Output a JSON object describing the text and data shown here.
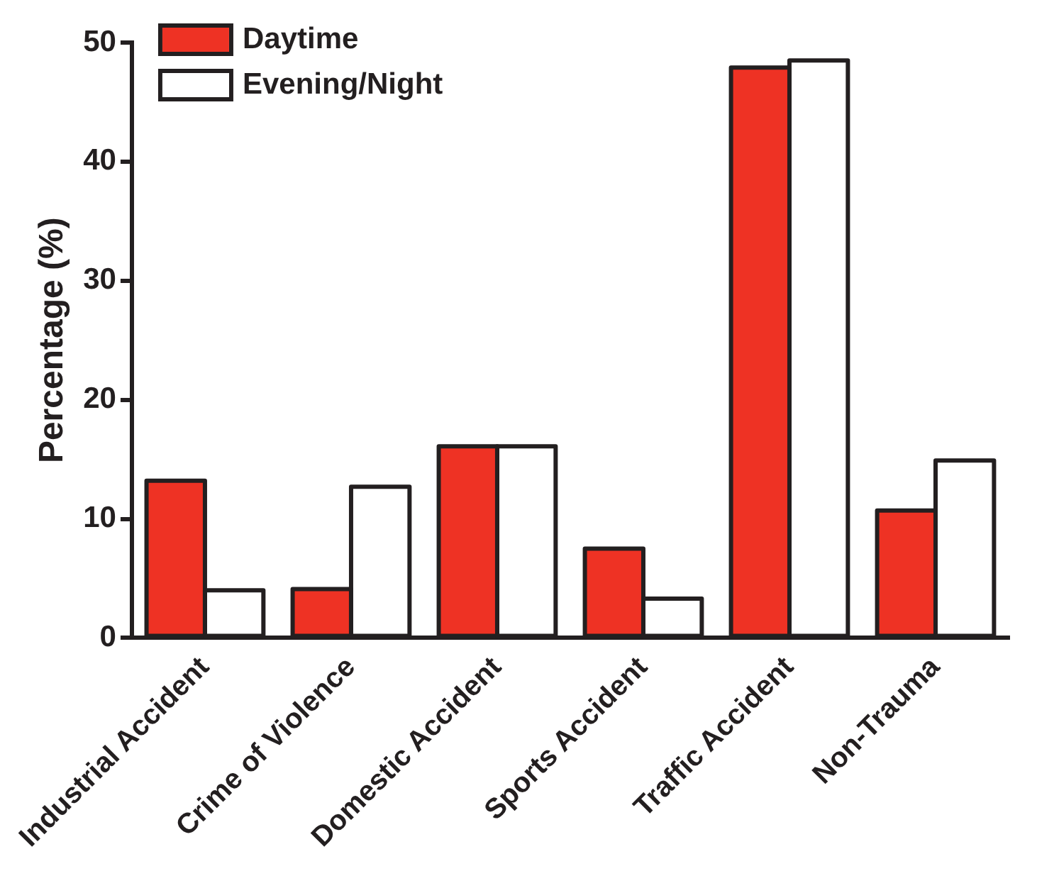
{
  "chart_data": {
    "type": "bar",
    "ylabel": "Percentage (%)",
    "categories": [
      "Industrial Accident",
      "Crime of Violence",
      "Domestic Accident",
      "Sports Accident",
      "Traffic Accident",
      "Non-Trauma"
    ],
    "series": [
      {
        "name": "Daytime",
        "color": "#ee3224",
        "values": [
          13.2,
          4.1,
          16.1,
          7.5,
          47.9,
          10.7
        ]
      },
      {
        "name": "Evening/Night",
        "color": "#ffffff",
        "values": [
          4.0,
          12.7,
          16.1,
          3.3,
          48.5,
          14.9
        ]
      }
    ],
    "ylim": [
      0,
      50
    ],
    "yticks": [
      0,
      10,
      20,
      30,
      40,
      50
    ],
    "grid": false,
    "legend": "top left"
  }
}
